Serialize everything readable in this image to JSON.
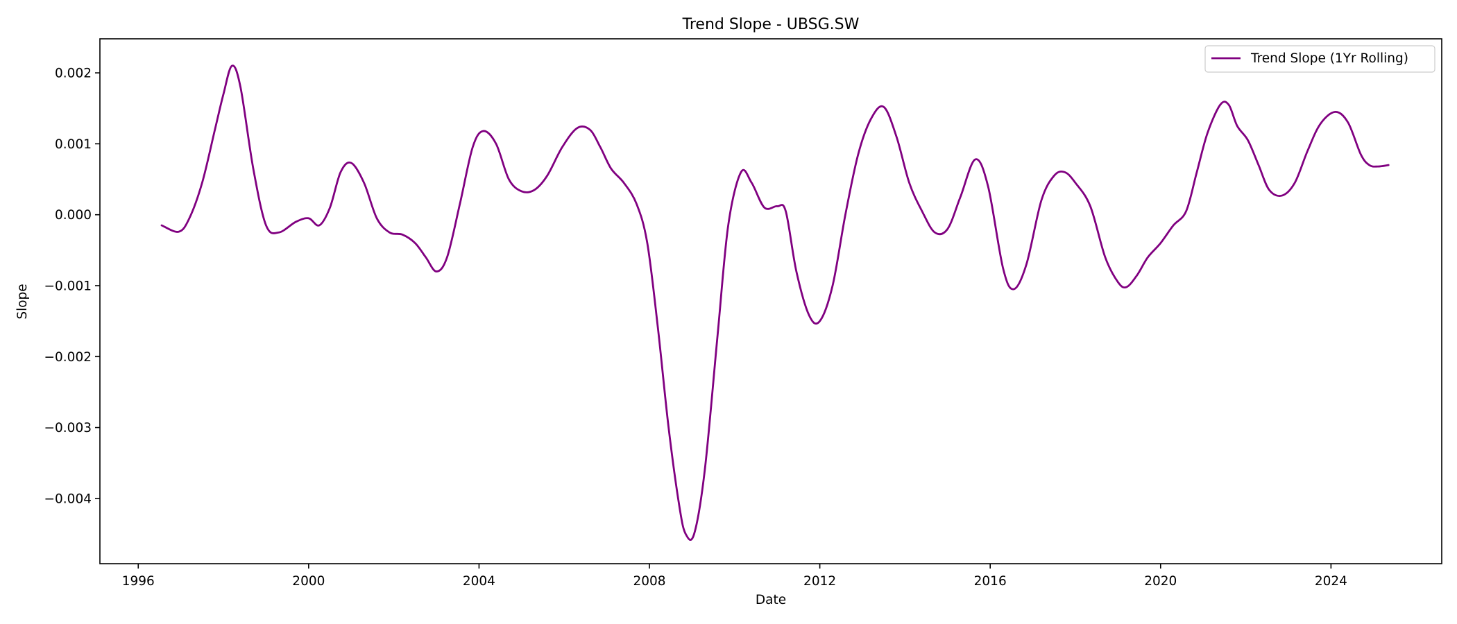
{
  "chart_data": {
    "type": "line",
    "title": "Trend Slope - UBSG.SW",
    "xlabel": "Date",
    "ylabel": "Slope",
    "xlim": [
      1995.1,
      2026.6
    ],
    "ylim": [
      -0.00492,
      0.00248
    ],
    "x_ticks": [
      {
        "value": 1996,
        "label": "1996"
      },
      {
        "value": 2000,
        "label": "2000"
      },
      {
        "value": 2004,
        "label": "2004"
      },
      {
        "value": 2008,
        "label": "2008"
      },
      {
        "value": 2012,
        "label": "2012"
      },
      {
        "value": 2016,
        "label": "2016"
      },
      {
        "value": 2020,
        "label": "2020"
      },
      {
        "value": 2024,
        "label": "2024"
      }
    ],
    "y_ticks": [
      {
        "value": 0.002,
        "label": "0.002"
      },
      {
        "value": 0.001,
        "label": "0.001"
      },
      {
        "value": 0.0,
        "label": "0.000"
      },
      {
        "value": -0.001,
        "label": "−0.001"
      },
      {
        "value": -0.002,
        "label": "−0.002"
      },
      {
        "value": -0.003,
        "label": "−0.003"
      },
      {
        "value": -0.004,
        "label": "−0.004"
      }
    ],
    "grid": false,
    "legend_position": "top-right",
    "series": [
      {
        "name": "Trend Slope (1Yr Rolling)",
        "color": "#800080",
        "x": [
          1996.55,
          1996.95,
          1997.2,
          1997.5,
          1997.8,
          1998.0,
          1998.2,
          1998.4,
          1998.7,
          1999.0,
          1999.3,
          1999.7,
          2000.0,
          2000.25,
          2000.5,
          2000.75,
          2001.0,
          2001.3,
          2001.6,
          2001.9,
          2002.2,
          2002.5,
          2002.75,
          2003.0,
          2003.25,
          2003.55,
          2003.85,
          2004.1,
          2004.4,
          2004.7,
          2005.0,
          2005.3,
          2005.6,
          2005.95,
          2006.3,
          2006.6,
          2006.85,
          2007.1,
          2007.4,
          2007.7,
          2007.95,
          2008.2,
          2008.45,
          2008.7,
          2008.85,
          2009.05,
          2009.3,
          2009.6,
          2009.85,
          2010.15,
          2010.4,
          2010.7,
          2011.0,
          2011.2,
          2011.45,
          2011.75,
          2012.0,
          2012.3,
          2012.6,
          2012.9,
          2013.2,
          2013.5,
          2013.8,
          2014.1,
          2014.4,
          2014.7,
          2015.0,
          2015.3,
          2015.65,
          2015.95,
          2016.3,
          2016.55,
          2016.85,
          2017.2,
          2017.5,
          2017.75,
          2018.0,
          2018.35,
          2018.7,
          2019.0,
          2019.2,
          2019.45,
          2019.7,
          2020.0,
          2020.3,
          2020.6,
          2020.85,
          2021.1,
          2021.4,
          2021.6,
          2021.8,
          2022.05,
          2022.3,
          2022.55,
          2022.85,
          2023.15,
          2023.45,
          2023.75,
          2024.1,
          2024.4,
          2024.7,
          2024.9,
          2025.1,
          2025.35
        ],
        "y": [
          -0.00015,
          -0.00024,
          -5e-05,
          0.00045,
          0.0012,
          0.0017,
          0.0021,
          0.0018,
          0.00065,
          -0.00015,
          -0.00025,
          -0.0001,
          -5e-05,
          -0.00015,
          0.0001,
          0.0006,
          0.00073,
          0.00045,
          -5e-05,
          -0.00025,
          -0.00028,
          -0.0004,
          -0.0006,
          -0.0008,
          -0.0006,
          0.00015,
          0.00095,
          0.00118,
          0.001,
          0.0005,
          0.00033,
          0.00035,
          0.00055,
          0.00095,
          0.00122,
          0.0012,
          0.00095,
          0.00065,
          0.00045,
          0.00015,
          -0.0004,
          -0.0016,
          -0.003,
          -0.0041,
          -0.0045,
          -0.0045,
          -0.0036,
          -0.0017,
          -0.00015,
          0.0006,
          0.00045,
          0.0001,
          0.00012,
          5e-05,
          -0.0008,
          -0.00142,
          -0.0015,
          -0.001,
          0.0,
          0.00085,
          0.00135,
          0.00152,
          0.0011,
          0.00045,
          5e-05,
          -0.00025,
          -0.0002,
          0.00025,
          0.00078,
          0.0004,
          -0.00075,
          -0.00105,
          -0.0007,
          0.0002,
          0.00055,
          0.0006,
          0.00045,
          0.00012,
          -0.0006,
          -0.00095,
          -0.00102,
          -0.00085,
          -0.0006,
          -0.0004,
          -0.00015,
          5e-05,
          0.0006,
          0.00115,
          0.00155,
          0.00155,
          0.00125,
          0.00105,
          0.0007,
          0.00035,
          0.00027,
          0.00045,
          0.0009,
          0.00128,
          0.00145,
          0.0013,
          0.00085,
          0.0007,
          0.00068,
          0.0007
        ]
      }
    ]
  }
}
